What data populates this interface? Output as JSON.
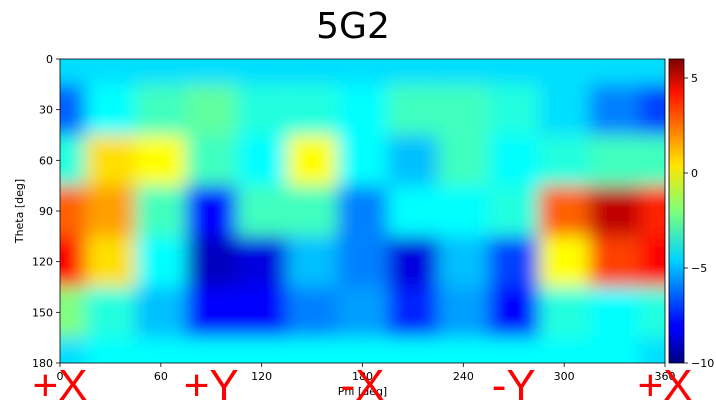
{
  "chart_data": {
    "type": "heatmap",
    "title": "5G2",
    "xlabel": "Phi [deg]",
    "ylabel": "Theta [deg]",
    "xlim": [
      0,
      360
    ],
    "ylim": [
      180,
      0
    ],
    "xticks": [
      "0",
      "60",
      "120",
      "180",
      "240",
      "300",
      "360"
    ],
    "yticks": [
      "0",
      "30",
      "60",
      "90",
      "120",
      "150",
      "180"
    ],
    "colorbar": {
      "min": -10,
      "max": 6,
      "ticks": [
        "5",
        "0",
        "−5",
        "−10"
      ],
      "colormap": "jet"
    },
    "x_step_deg": 30,
    "y_step_deg": 30,
    "values": [
      [
        -4.5,
        -4.5,
        -4.5,
        -4.5,
        -4.5,
        -4.5,
        -4.5,
        -4.5,
        -4.5,
        -4.5,
        -4.5,
        -4.5,
        -4.5
      ],
      [
        -6.5,
        -4.0,
        -3.0,
        -2.5,
        -3.5,
        -3.5,
        -4.0,
        -3.0,
        -3.0,
        -3.5,
        -4.5,
        -6.0,
        -7.0
      ],
      [
        -3.5,
        0.5,
        0.0,
        -3.0,
        -4.0,
        0.0,
        -4.0,
        -5.0,
        -3.0,
        -4.0,
        -3.5,
        -3.0,
        -3.0
      ],
      [
        2.5,
        1.5,
        -3.0,
        -8.0,
        -3.0,
        -3.0,
        -6.0,
        -4.0,
        -4.0,
        -3.5,
        2.5,
        5.0,
        3.5
      ],
      [
        4.0,
        0.5,
        -4.0,
        -9.0,
        -8.5,
        -5.0,
        -6.0,
        -8.5,
        -5.0,
        -7.0,
        0.0,
        3.0,
        4.0
      ],
      [
        -2.0,
        -3.5,
        -5.0,
        -8.0,
        -8.0,
        -6.0,
        -5.5,
        -7.5,
        -5.5,
        -8.0,
        -3.5,
        -4.0,
        -3.5
      ],
      [
        -4.5,
        -4.0,
        -4.0,
        -4.0,
        -4.0,
        -4.0,
        -4.0,
        -4.0,
        -4.0,
        -4.0,
        -4.0,
        -4.0,
        -4.5
      ]
    ],
    "orientation_labels": [
      "+X",
      "+Y",
      "-X",
      "-Y",
      "+X"
    ]
  }
}
